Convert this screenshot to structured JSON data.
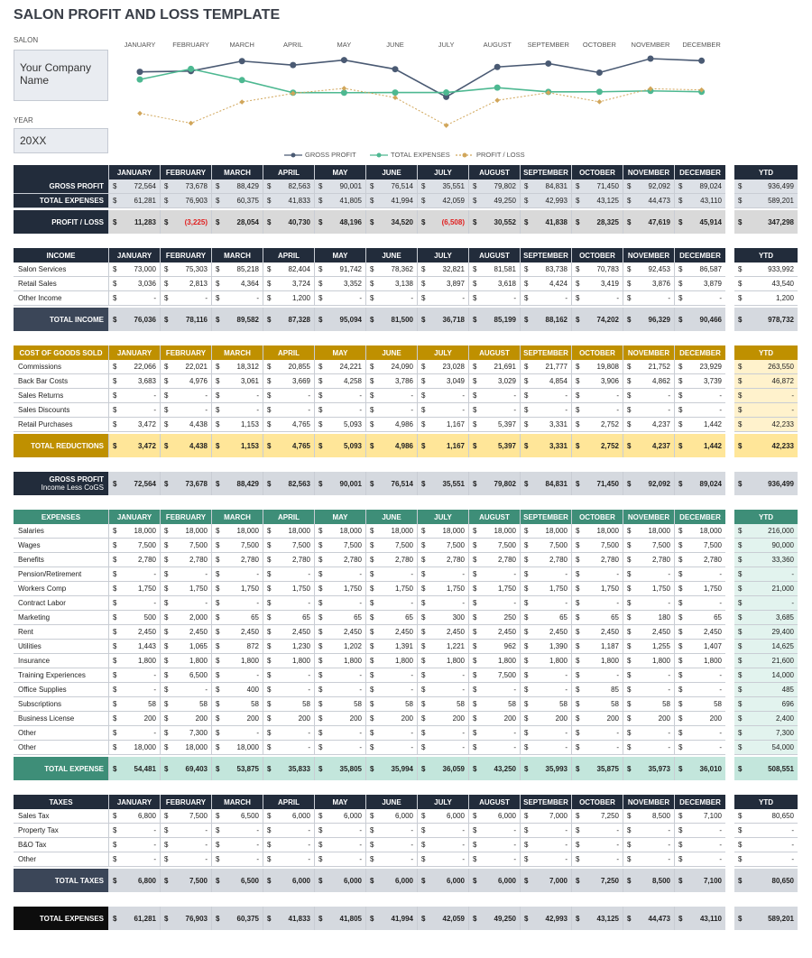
{
  "title": "SALON PROFIT AND LOSS TEMPLATE",
  "salon_label": "SALON",
  "company": "Your Company Name",
  "year_label": "YEAR",
  "year": "20XX",
  "currency": "$",
  "months": [
    "JANUARY",
    "FEBRUARY",
    "MARCH",
    "APRIL",
    "MAY",
    "JUNE",
    "JULY",
    "AUGUST",
    "SEPTEMBER",
    "OCTOBER",
    "NOVEMBER",
    "DECEMBER"
  ],
  "ytd_label": "YTD",
  "chart_data": {
    "type": "line",
    "categories": [
      "JANUARY",
      "FEBRUARY",
      "MARCH",
      "APRIL",
      "MAY",
      "JUNE",
      "JULY",
      "AUGUST",
      "SEPTEMBER",
      "OCTOBER",
      "NOVEMBER",
      "DECEMBER"
    ],
    "series": [
      {
        "name": "GROSS PROFIT",
        "color": "#4a5a73",
        "values": [
          72564,
          73678,
          88429,
          82563,
          90001,
          76514,
          35551,
          79802,
          84831,
          71450,
          92092,
          89024
        ]
      },
      {
        "name": "TOTAL EXPENSES",
        "color": "#4db891",
        "values": [
          61281,
          76903,
          60375,
          41833,
          41805,
          41994,
          42059,
          49250,
          42993,
          43125,
          44473,
          43110
        ]
      },
      {
        "name": "PROFIT / LOSS",
        "color": "#d1a65a",
        "dashed": true,
        "values": [
          11283,
          -3225,
          28054,
          40730,
          48196,
          34520,
          -6508,
          30552,
          41838,
          28325,
          47619,
          45914
        ]
      }
    ]
  },
  "sections": [
    {
      "colors": {
        "header": "#222c3b",
        "row_label": "#222c3b",
        "row_fill": "#dde1e7",
        "total_label": "#222c3b",
        "total_fill": "#d9d9d9"
      },
      "rows": [
        {
          "label": "GROSS PROFIT",
          "values": [
            "72,564",
            "73,678",
            "88,429",
            "82,563",
            "90,001",
            "76,514",
            "35,551",
            "79,802",
            "84,831",
            "71,450",
            "92,092",
            "89,024"
          ],
          "ytd": "936,499"
        },
        {
          "label": "TOTAL EXPENSES",
          "values": [
            "61,281",
            "76,903",
            "60,375",
            "41,833",
            "41,805",
            "41,994",
            "42,059",
            "49,250",
            "42,993",
            "43,125",
            "44,473",
            "43,110"
          ],
          "ytd": "589,201"
        }
      ],
      "total": {
        "label": "PROFIT / LOSS",
        "values": [
          "11,283",
          "(3,225)",
          "28,054",
          "40,730",
          "48,196",
          "34,520",
          "(6,508)",
          "30,552",
          "41,838",
          "28,325",
          "47,619",
          "45,914"
        ],
        "ytd": "347,298"
      }
    },
    {
      "header": "INCOME",
      "colors": {
        "header": "#222c3b",
        "total_label": "#3b4658",
        "total_fill": "#d5d9df"
      },
      "rows": [
        {
          "label": "Salon Services",
          "values": [
            "73,000",
            "75,303",
            "85,218",
            "82,404",
            "91,742",
            "78,362",
            "32,821",
            "81,581",
            "83,738",
            "70,783",
            "92,453",
            "86,587"
          ],
          "ytd": "933,992"
        },
        {
          "label": "Retail Sales",
          "values": [
            "3,036",
            "2,813",
            "4,364",
            "3,724",
            "3,352",
            "3,138",
            "3,897",
            "3,618",
            "4,424",
            "3,419",
            "3,876",
            "3,879"
          ],
          "ytd": "43,540"
        },
        {
          "label": "Other Income",
          "values": [
            "-",
            "-",
            "-",
            "1,200",
            "-",
            "-",
            "-",
            "-",
            "-",
            "-",
            "-",
            "-"
          ],
          "ytd": "1,200"
        }
      ],
      "total": {
        "label": "TOTAL INCOME",
        "values": [
          "76,036",
          "78,116",
          "89,582",
          "87,328",
          "95,094",
          "81,500",
          "36,718",
          "85,199",
          "88,162",
          "74,202",
          "96,329",
          "90,466"
        ],
        "ytd": "978,732"
      }
    },
    {
      "header": "COST OF GOODS SOLD",
      "colors": {
        "header": "#bf9000",
        "total_label": "#bf9000",
        "total_fill": "#ffe699",
        "ytd_fill": "#fff2cc"
      },
      "rows": [
        {
          "label": "Commissions",
          "values": [
            "22,066",
            "22,021",
            "18,312",
            "20,855",
            "24,221",
            "24,090",
            "23,028",
            "21,691",
            "21,777",
            "19,808",
            "21,752",
            "23,929"
          ],
          "ytd": "263,550"
        },
        {
          "label": "Back Bar Costs",
          "values": [
            "3,683",
            "4,976",
            "3,061",
            "3,669",
            "4,258",
            "3,786",
            "3,049",
            "3,029",
            "4,854",
            "3,906",
            "4,862",
            "3,739"
          ],
          "ytd": "46,872"
        },
        {
          "label": "Sales Returns",
          "values": [
            "-",
            "-",
            "-",
            "-",
            "-",
            "-",
            "-",
            "-",
            "-",
            "-",
            "-",
            "-"
          ],
          "ytd": "-"
        },
        {
          "label": "Sales Discounts",
          "values": [
            "-",
            "-",
            "-",
            "-",
            "-",
            "-",
            "-",
            "-",
            "-",
            "-",
            "-",
            "-"
          ],
          "ytd": "-"
        },
        {
          "label": "Retail Purchases",
          "values": [
            "3,472",
            "4,438",
            "1,153",
            "4,765",
            "5,093",
            "4,986",
            "1,167",
            "5,397",
            "3,331",
            "2,752",
            "4,237",
            "1,442"
          ],
          "ytd": "42,233"
        }
      ],
      "total": {
        "label": "TOTAL REDUCTIONS",
        "values": [
          "3,472",
          "4,438",
          "1,153",
          "4,765",
          "5,093",
          "4,986",
          "1,167",
          "5,397",
          "3,331",
          "2,752",
          "4,237",
          "1,442"
        ],
        "ytd": "42,233"
      }
    },
    {
      "colors": {
        "total_label": "#222c3b",
        "total_fill": "#d5d9df"
      },
      "total": {
        "label": "GROSS PROFIT",
        "sublabel": "Income Less CoGS",
        "values": [
          "72,564",
          "73,678",
          "88,429",
          "82,563",
          "90,001",
          "76,514",
          "35,551",
          "79,802",
          "84,831",
          "71,450",
          "92,092",
          "89,024"
        ],
        "ytd": "936,499"
      }
    },
    {
      "header": "EXPENSES",
      "colors": {
        "header": "#3e8e78",
        "total_label": "#3e8e78",
        "total_fill": "#c3e6dc",
        "ytd_fill": "#e2f3ee"
      },
      "rows": [
        {
          "label": "Salaries",
          "values": [
            "18,000",
            "18,000",
            "18,000",
            "18,000",
            "18,000",
            "18,000",
            "18,000",
            "18,000",
            "18,000",
            "18,000",
            "18,000",
            "18,000"
          ],
          "ytd": "216,000"
        },
        {
          "label": "Wages",
          "values": [
            "7,500",
            "7,500",
            "7,500",
            "7,500",
            "7,500",
            "7,500",
            "7,500",
            "7,500",
            "7,500",
            "7,500",
            "7,500",
            "7,500"
          ],
          "ytd": "90,000"
        },
        {
          "label": "Benefits",
          "values": [
            "2,780",
            "2,780",
            "2,780",
            "2,780",
            "2,780",
            "2,780",
            "2,780",
            "2,780",
            "2,780",
            "2,780",
            "2,780",
            "2,780"
          ],
          "ytd": "33,360"
        },
        {
          "label": "Pension/Retirement",
          "values": [
            "-",
            "-",
            "-",
            "-",
            "-",
            "-",
            "-",
            "-",
            "-",
            "-",
            "-",
            "-"
          ],
          "ytd": "-"
        },
        {
          "label": "Workers Comp",
          "values": [
            "1,750",
            "1,750",
            "1,750",
            "1,750",
            "1,750",
            "1,750",
            "1,750",
            "1,750",
            "1,750",
            "1,750",
            "1,750",
            "1,750"
          ],
          "ytd": "21,000"
        },
        {
          "label": "Contract Labor",
          "values": [
            "-",
            "-",
            "-",
            "-",
            "-",
            "-",
            "-",
            "-",
            "-",
            "-",
            "-",
            "-"
          ],
          "ytd": "-"
        },
        {
          "label": "Marketing",
          "values": [
            "500",
            "2,000",
            "65",
            "65",
            "65",
            "65",
            "300",
            "250",
            "65",
            "65",
            "180",
            "65"
          ],
          "ytd": "3,685"
        },
        {
          "label": "Rent",
          "values": [
            "2,450",
            "2,450",
            "2,450",
            "2,450",
            "2,450",
            "2,450",
            "2,450",
            "2,450",
            "2,450",
            "2,450",
            "2,450",
            "2,450"
          ],
          "ytd": "29,400"
        },
        {
          "label": "Utilities",
          "values": [
            "1,443",
            "1,065",
            "872",
            "1,230",
            "1,202",
            "1,391",
            "1,221",
            "962",
            "1,390",
            "1,187",
            "1,255",
            "1,407"
          ],
          "ytd": "14,625"
        },
        {
          "label": "Insurance",
          "values": [
            "1,800",
            "1,800",
            "1,800",
            "1,800",
            "1,800",
            "1,800",
            "1,800",
            "1,800",
            "1,800",
            "1,800",
            "1,800",
            "1,800"
          ],
          "ytd": "21,600"
        },
        {
          "label": "Training Experiences",
          "values": [
            "-",
            "6,500",
            "-",
            "-",
            "-",
            "-",
            "-",
            "7,500",
            "-",
            "-",
            "-",
            "-"
          ],
          "ytd": "14,000"
        },
        {
          "label": "Office Supplies",
          "values": [
            "-",
            "-",
            "400",
            "-",
            "-",
            "-",
            "-",
            "-",
            "-",
            "85",
            "-",
            "-"
          ],
          "ytd": "485"
        },
        {
          "label": "Subscriptions",
          "values": [
            "58",
            "58",
            "58",
            "58",
            "58",
            "58",
            "58",
            "58",
            "58",
            "58",
            "58",
            "58"
          ],
          "ytd": "696"
        },
        {
          "label": "Business License",
          "values": [
            "200",
            "200",
            "200",
            "200",
            "200",
            "200",
            "200",
            "200",
            "200",
            "200",
            "200",
            "200"
          ],
          "ytd": "2,400"
        },
        {
          "label": "Other",
          "values": [
            "-",
            "7,300",
            "-",
            "-",
            "-",
            "-",
            "-",
            "-",
            "-",
            "-",
            "-",
            "-"
          ],
          "ytd": "7,300"
        },
        {
          "label": "Other",
          "values": [
            "18,000",
            "18,000",
            "18,000",
            "-",
            "-",
            "-",
            "-",
            "-",
            "-",
            "-",
            "-",
            "-"
          ],
          "ytd": "54,000"
        }
      ],
      "total": {
        "label": "TOTAL EXPENSE",
        "values": [
          "54,481",
          "69,403",
          "53,875",
          "35,833",
          "35,805",
          "35,994",
          "36,059",
          "43,250",
          "35,993",
          "35,875",
          "35,973",
          "36,010"
        ],
        "ytd": "508,551"
      }
    },
    {
      "header": "TAXES",
      "colors": {
        "header": "#222c3b",
        "total_label": "#3b4658",
        "total_fill": "#d5d9df"
      },
      "rows": [
        {
          "label": "Sales Tax",
          "values": [
            "6,800",
            "7,500",
            "6,500",
            "6,000",
            "6,000",
            "6,000",
            "6,000",
            "6,000",
            "7,000",
            "7,250",
            "8,500",
            "7,100"
          ],
          "ytd": "80,650"
        },
        {
          "label": "Property Tax",
          "values": [
            "-",
            "-",
            "-",
            "-",
            "-",
            "-",
            "-",
            "-",
            "-",
            "-",
            "-",
            "-"
          ],
          "ytd": "-"
        },
        {
          "label": "B&O Tax",
          "values": [
            "-",
            "-",
            "-",
            "-",
            "-",
            "-",
            "-",
            "-",
            "-",
            "-",
            "-",
            "-"
          ],
          "ytd": "-"
        },
        {
          "label": "Other",
          "values": [
            "-",
            "-",
            "-",
            "-",
            "-",
            "-",
            "-",
            "-",
            "-",
            "-",
            "-",
            "-"
          ],
          "ytd": "-"
        }
      ],
      "total": {
        "label": "TOTAL TAXES",
        "values": [
          "6,800",
          "7,500",
          "6,500",
          "6,000",
          "6,000",
          "6,000",
          "6,000",
          "6,000",
          "7,000",
          "7,250",
          "8,500",
          "7,100"
        ],
        "ytd": "80,650"
      }
    },
    {
      "colors": {
        "total_label": "#0d0d0d",
        "total_fill": "#d5d9df"
      },
      "total": {
        "label": "TOTAL EXPENSES",
        "values": [
          "61,281",
          "76,903",
          "60,375",
          "41,833",
          "41,805",
          "41,994",
          "42,059",
          "49,250",
          "42,993",
          "43,125",
          "44,473",
          "43,110"
        ],
        "ytd": "589,201"
      }
    }
  ]
}
